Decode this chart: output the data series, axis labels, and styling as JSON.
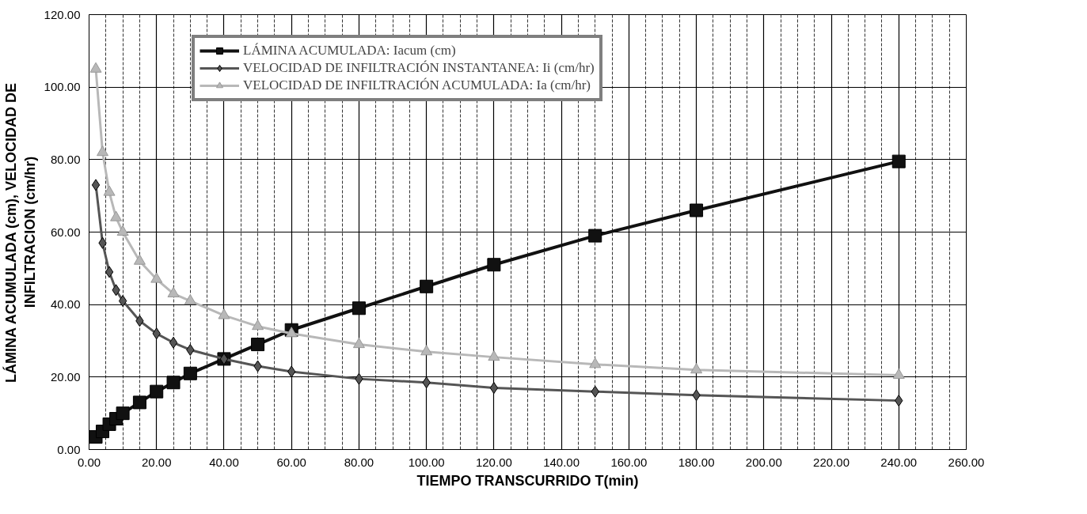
{
  "chart_data": {
    "type": "line",
    "xlabel": "TIEMPO TRANSCURRIDO T(min)",
    "ylabel": "LÁMINA ACUMULADA (cm), VELOCIDAD DE\nINFILTRACION (cm/hr)",
    "x": [
      2,
      4,
      6,
      8,
      10,
      15,
      20,
      25,
      30,
      40,
      50,
      60,
      80,
      100,
      120,
      150,
      180,
      240
    ],
    "series": [
      {
        "name": "LÁMINA ACUMULADA: Iacum (cm)",
        "color": "#111111",
        "marker": "square",
        "values": [
          3.5,
          5,
          7,
          8.5,
          10,
          13,
          16,
          18.5,
          21,
          25,
          29,
          33,
          39,
          45,
          51,
          59,
          66,
          79.5
        ]
      },
      {
        "name": "VELOCIDAD DE INFILTRACIÓN INSTANTANEA: Ii (cm/hr)",
        "color": "#555555",
        "marker": "diamond",
        "values": [
          73,
          57,
          49,
          44,
          41,
          35.5,
          32,
          29.5,
          27.5,
          25,
          23,
          21.5,
          19.5,
          18.5,
          17,
          16,
          15,
          13.5
        ]
      },
      {
        "name": "VELOCIDAD DE INFILTRACIÓN ACUMULADA: Ia (cm/hr)",
        "color": "#b8b8b8",
        "marker": "triangle",
        "values": [
          105,
          82,
          71,
          64,
          60,
          52,
          47,
          43,
          41,
          37,
          34,
          32,
          29,
          27,
          25.5,
          23.5,
          22,
          20.5
        ]
      }
    ],
    "xlim": [
      0,
      260
    ],
    "ylim": [
      0,
      120
    ],
    "xticks": [
      {
        "value": 0,
        "label": "0.00"
      },
      {
        "value": 20,
        "label": "20.00"
      },
      {
        "value": 40,
        "label": "40.00"
      },
      {
        "value": 60,
        "label": "60.00"
      },
      {
        "value": 80,
        "label": "80.00"
      },
      {
        "value": 100,
        "label": "100.00"
      },
      {
        "value": 120,
        "label": "120.00"
      },
      {
        "value": 140,
        "label": "140.00"
      },
      {
        "value": 160,
        "label": "160.00"
      },
      {
        "value": 180,
        "label": "180.00"
      },
      {
        "value": 200,
        "label": "200.00"
      },
      {
        "value": 220,
        "label": "220.00"
      },
      {
        "value": 240,
        "label": "240.00"
      },
      {
        "value": 260,
        "label": "260.00"
      }
    ],
    "yticks": [
      {
        "value": 0,
        "label": "0.00"
      },
      {
        "value": 20,
        "label": "20.00"
      },
      {
        "value": 40,
        "label": "40.00"
      },
      {
        "value": 60,
        "label": "60.00"
      },
      {
        "value": 80,
        "label": "80.00"
      },
      {
        "value": 100,
        "label": "100.00"
      },
      {
        "value": 120,
        "label": "120.00"
      }
    ],
    "grid": true,
    "legend": "top",
    "line_style": "solid"
  }
}
